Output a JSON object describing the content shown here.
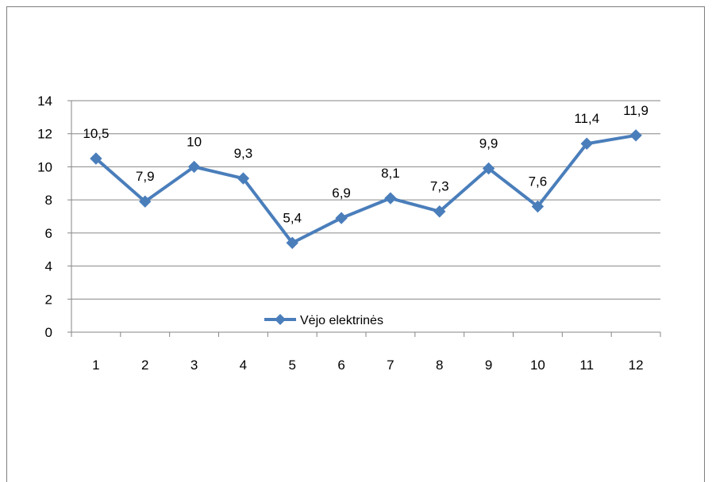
{
  "chart_data": {
    "type": "line",
    "categories": [
      "1",
      "2",
      "3",
      "4",
      "5",
      "6",
      "7",
      "8",
      "9",
      "10",
      "11",
      "12"
    ],
    "series": [
      {
        "name": "Vėjo elektrinės",
        "values": [
          10.5,
          7.9,
          10,
          9.3,
          5.4,
          6.9,
          8.1,
          7.3,
          9.9,
          7.6,
          11.4,
          11.9
        ],
        "labels": [
          "10,5",
          "7,9",
          "10",
          "9,3",
          "5,4",
          "6,9",
          "8,1",
          "7,3",
          "9,9",
          "7,6",
          "11,4",
          "11,9"
        ],
        "color": "#4a7ebb",
        "marker": "diamond"
      }
    ],
    "ylim": [
      0,
      14
    ],
    "yticks": [
      "0",
      "2",
      "4",
      "6",
      "8",
      "10",
      "12",
      "14"
    ],
    "grid": true,
    "legend": "bottom-center"
  }
}
